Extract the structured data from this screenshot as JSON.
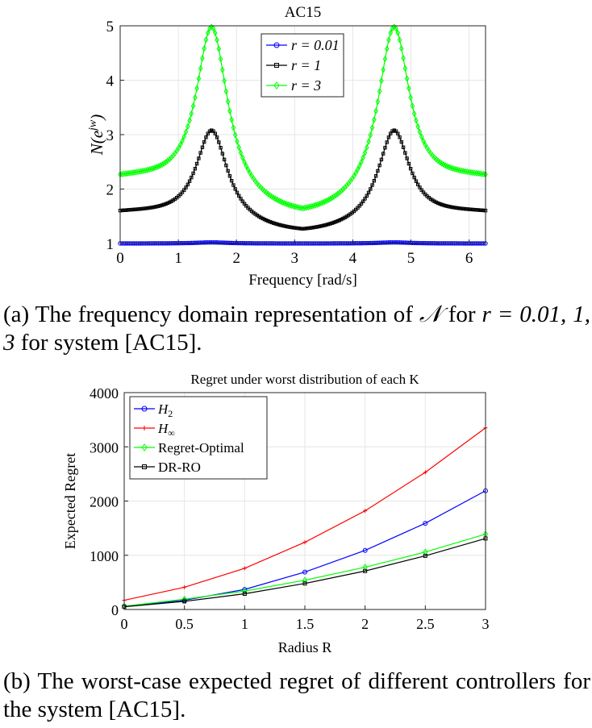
{
  "chart_data": [
    {
      "type": "line",
      "title": "AC15",
      "xlabel": "Frequency [rad/s]",
      "ylabel": "N(e^{jw})",
      "xlim": [
        0,
        6.283
      ],
      "ylim": [
        1,
        5
      ],
      "xticks": [
        0,
        1,
        2,
        3,
        4,
        5,
        6
      ],
      "yticks": [
        1,
        2,
        3,
        4,
        5
      ],
      "grid": true,
      "legend_position": "top-right",
      "series": [
        {
          "name": "r = 0.01",
          "color": "#0000ff",
          "marker": "circle",
          "base": 1.0,
          "peak": 1.02,
          "trough": 1.0,
          "peak_freqs": [
            1.571,
            4.712
          ]
        },
        {
          "name": "r = 1",
          "color": "#000000",
          "marker": "square",
          "base": 1.54,
          "peak": 3.08,
          "trough": 1.19,
          "peak_freqs": [
            1.571,
            4.712
          ]
        },
        {
          "name": "r = 3",
          "color": "#00ff00",
          "marker": "diamond",
          "base": 2.15,
          "peak": 4.98,
          "trough": 1.5,
          "peak_freqs": [
            1.571,
            4.712
          ]
        }
      ]
    },
    {
      "type": "line",
      "title": "Regret under worst distribution of each K",
      "xlabel": "Radius R",
      "ylabel": "Expected Regret",
      "xlim": [
        0,
        3
      ],
      "ylim": [
        0,
        4000
      ],
      "xticks": [
        0,
        0.5,
        1,
        1.5,
        2,
        2.5,
        3
      ],
      "yticks": [
        0,
        1000,
        2000,
        3000,
        4000
      ],
      "grid": true,
      "legend_position": "top-left",
      "x": [
        0,
        0.5,
        1,
        1.5,
        2,
        2.5,
        3
      ],
      "series": [
        {
          "name": "H2",
          "color": "#0000ff",
          "marker": "circle",
          "values": [
            60,
            170,
            370,
            690,
            1090,
            1590,
            2190
          ]
        },
        {
          "name": "H∞",
          "color": "#ff0000",
          "marker": "plus",
          "values": [
            170,
            410,
            760,
            1240,
            1820,
            2530,
            3350
          ]
        },
        {
          "name": "Regret-Optimal",
          "color": "#00ff00",
          "marker": "diamond",
          "values": [
            60,
            190,
            340,
            540,
            780,
            1060,
            1390
          ]
        },
        {
          "name": "DR-RO",
          "color": "#000000",
          "marker": "square",
          "values": [
            50,
            150,
            290,
            480,
            710,
            990,
            1310
          ]
        }
      ]
    }
  ],
  "captions": {
    "a_prefix": "(a) The frequency domain representation of ",
    "a_symbol": "𝒩",
    "a_for": " for ",
    "a_math": "r = 0.01, 1, 3",
    "a_suffix": " for system [AC15].",
    "b": "(b) The worst-case expected regret of different controllers for the system [AC15]."
  }
}
